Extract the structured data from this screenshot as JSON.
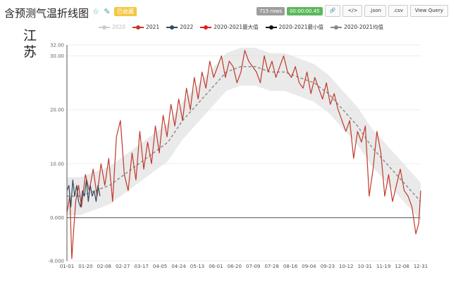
{
  "header": {
    "title": "含预测气温折线图",
    "icons": [
      "star-icon",
      "edit-icon"
    ],
    "badge": "已收藏"
  },
  "toolbar": {
    "rows_tag": "715 rows",
    "time_tag": "00:00:00.45",
    "link_icon": "🔗",
    "code_icon": "</>",
    "json_button": ".json",
    "csv_button": ".csv",
    "view_query_button": "View Query"
  },
  "province": "江苏",
  "colors": {
    "y2020": "#c8c8c8",
    "y2021": "#c0392b",
    "y2022": "#34495e",
    "max": "#e41a1c",
    "min": "#111111",
    "avg": "#888888",
    "band": "#d9d9d9"
  },
  "chart_data": {
    "type": "line",
    "x_ticks": [
      "01-01",
      "01-20",
      "02-08",
      "02-27",
      "03-17",
      "04-05",
      "04-24",
      "05-13",
      "06-01",
      "06-20",
      "07-09",
      "07-28",
      "08-16",
      "09-04",
      "09-23",
      "10-12",
      "10-31",
      "11-19",
      "12-08",
      "12-31"
    ],
    "ylim": [
      -8,
      32
    ],
    "y_ticks": [
      -8,
      0,
      10,
      20,
      30,
      32
    ],
    "y_tick_labels": [
      "-8.000",
      "0.000",
      "10.00",
      "20.00",
      "30.00",
      "32.00"
    ],
    "grid": true,
    "legend_position": "top",
    "series": [
      {
        "name": "2020",
        "visible": false
      },
      {
        "name": "2021",
        "color": "#c0392b",
        "x": [
          1,
          4,
          6,
          8,
          10,
          13,
          16,
          20,
          24,
          28,
          32,
          36,
          40,
          44,
          48,
          52,
          56,
          60,
          64,
          68,
          72,
          76,
          80,
          84,
          88,
          92,
          96,
          100,
          104,
          108,
          112,
          116,
          120,
          124,
          128,
          132,
          136,
          140,
          144,
          148,
          152,
          156,
          160,
          164,
          168,
          172,
          176,
          180,
          184,
          188,
          192,
          196,
          200,
          204,
          208,
          212,
          216,
          220,
          224,
          228,
          232,
          236,
          240,
          244,
          248,
          252,
          256,
          260,
          264,
          268,
          272,
          276,
          280,
          284,
          288,
          292,
          296,
          300,
          304,
          308,
          312,
          316,
          320,
          324,
          328,
          332,
          336,
          340,
          344,
          348,
          352,
          356,
          360,
          363,
          365
        ],
        "y": [
          1,
          4,
          -7.6,
          -2,
          3,
          6,
          2,
          8,
          5,
          9,
          4,
          10,
          6,
          11,
          3,
          15,
          18,
          8,
          5,
          12,
          7,
          16,
          9,
          14,
          10,
          17,
          12,
          19,
          15,
          21,
          17,
          22,
          18,
          24,
          20,
          26,
          22,
          27,
          24,
          29,
          26,
          28,
          30,
          26,
          29,
          28,
          25,
          27,
          31,
          29,
          28,
          27,
          25,
          30,
          27,
          29,
          26,
          28,
          30,
          27,
          26,
          28,
          25,
          24,
          27,
          23,
          26,
          24,
          22,
          25,
          21,
          23,
          20,
          18,
          16,
          18,
          11,
          16,
          14,
          17,
          4,
          9,
          16,
          12,
          4,
          8,
          3,
          6,
          9,
          5,
          4,
          2,
          -3,
          -1,
          5
        ]
      },
      {
        "name": "2022",
        "color": "#34495e",
        "x": [
          1,
          3,
          5,
          7,
          9,
          11,
          13,
          15,
          17,
          19,
          21,
          23,
          25,
          27,
          29,
          31,
          33,
          35
        ],
        "y": [
          5,
          6,
          2,
          7,
          4,
          6,
          3,
          2,
          5,
          4,
          7,
          3,
          6,
          4,
          5,
          3,
          6,
          4
        ]
      },
      {
        "name": "2020-2021最大值",
        "visible": false
      },
      {
        "name": "2020-2021最小值",
        "visible": false
      },
      {
        "name": "2020-2021均值",
        "color": "#888888",
        "x": [
          1,
          15,
          30,
          45,
          60,
          75,
          90,
          105,
          120,
          135,
          150,
          165,
          180,
          195,
          210,
          225,
          240,
          255,
          270,
          285,
          300,
          315,
          330,
          345,
          360,
          365
        ],
        "y": [
          4,
          4,
          5,
          6,
          8,
          10,
          12,
          14,
          18,
          21,
          24,
          27,
          28,
          28,
          27,
          27,
          26,
          25,
          23,
          20,
          17,
          13,
          10,
          7,
          4,
          3
        ]
      }
    ]
  }
}
